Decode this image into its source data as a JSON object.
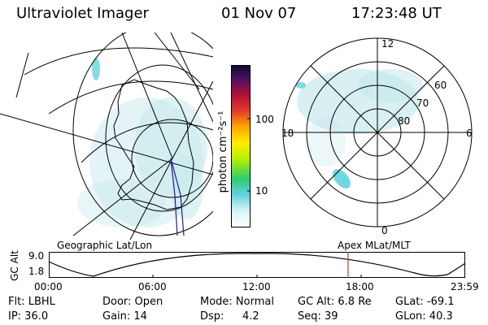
{
  "header": {
    "title": "Ultraviolet Imager",
    "date": "01 Nov 07",
    "time": "17:23:48 UT"
  },
  "colorbar": {
    "unit_label": "photon cm⁻²s⁻¹",
    "ticks": [
      "100",
      "10"
    ]
  },
  "polar_plot": {
    "mlt_labels": [
      "12",
      "18",
      "6",
      "0"
    ],
    "lat_labels": [
      "60",
      "70",
      "80"
    ]
  },
  "strip": {
    "left_label": "Geographic Lat/Lon",
    "right_label": "Apex MLat/MLT",
    "yaxis_label": "GC Alt",
    "y_ticks": [
      "9.0",
      "1.8"
    ],
    "time_ticks": [
      "00:00",
      "06:00",
      "12:00",
      "18:00",
      "23:59"
    ],
    "marker_time": "17:23"
  },
  "info": {
    "row1": [
      "Flt: LBHL",
      "Door: Open",
      "Mode: Normal",
      "GC Alt: 6.8 Re",
      "GLat: -69.1"
    ],
    "row2": [
      "IP: 36.0",
      "Gain: 14",
      "Dsp:",
      "4.2",
      "Seq: 39",
      "GLon: 40.3"
    ]
  },
  "colors": {
    "aurora": "#bfe6ea",
    "aurora_bright": "#5fd3e0",
    "line_blue": "#1a1a9a",
    "marker_red": "#c0392b"
  }
}
